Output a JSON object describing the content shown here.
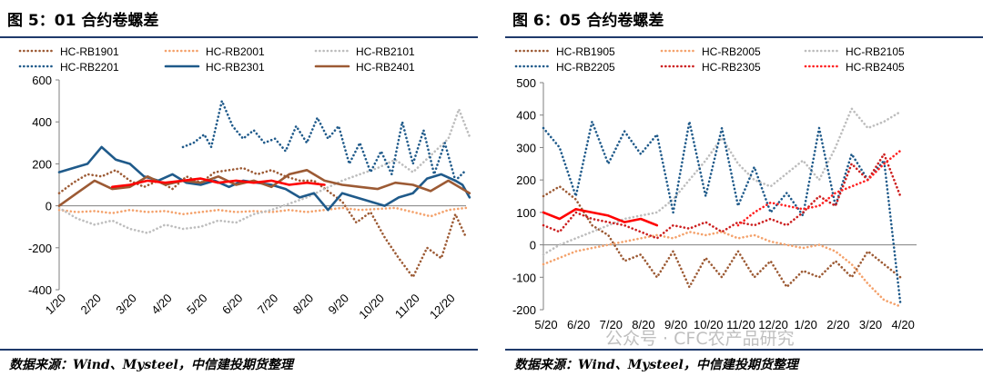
{
  "charts": [
    {
      "figure_title": "图 5：01 合约卷螺差",
      "source": "数据来源：Wind、Mysteel，中信建投期货整理",
      "chart_data": {
        "type": "line",
        "x_ticks": [
          "1/20",
          "2/20",
          "3/20",
          "4/20",
          "5/20",
          "6/20",
          "7/20",
          "8/20",
          "9/20",
          "10/20",
          "11/20",
          "12/20"
        ],
        "x_count": 12,
        "ylim": [
          -400,
          600
        ],
        "y_ticks": [
          600,
          400,
          200,
          0,
          -200,
          -400
        ],
        "legend_columns": 3,
        "series": [
          {
            "name": "HC-RB1901",
            "color": "#9c5a34",
            "style": "dot",
            "x": [
              0,
              0.4,
              0.8,
              1.2,
              1.6,
              2,
              2.4,
              2.8,
              3.2,
              3.6,
              4,
              4.4,
              4.8,
              5.2,
              5.6,
              6,
              6.4,
              6.8,
              7.2,
              7.6,
              8,
              8.4,
              8.8,
              9.2,
              9.6,
              10,
              10.4,
              10.8,
              11.2,
              11.5
            ],
            "y": [
              60,
              110,
              150,
              140,
              170,
              120,
              90,
              120,
              80,
              140,
              110,
              160,
              170,
              180,
              150,
              170,
              140,
              120,
              120,
              70,
              20,
              -80,
              -30,
              -150,
              -250,
              -340,
              -200,
              -250,
              -40,
              -150
            ]
          },
          {
            "name": "HC-RB2001",
            "color": "#f4a26c",
            "style": "dot",
            "x": [
              0,
              0.5,
              1,
              1.5,
              2,
              2.5,
              3,
              3.5,
              4,
              4.5,
              5,
              5.5,
              6,
              6.5,
              7,
              7.5,
              8,
              8.5,
              9,
              9.5,
              10,
              10.5,
              11,
              11.5
            ],
            "y": [
              -20,
              -30,
              -25,
              -35,
              -20,
              -30,
              -25,
              -40,
              -30,
              -20,
              -30,
              -25,
              -30,
              -20,
              -30,
              -20,
              -10,
              -20,
              -15,
              -10,
              -30,
              -50,
              -20,
              -10
            ]
          },
          {
            "name": "HC-RB2101",
            "color": "#bdbdbd",
            "style": "dot",
            "x": [
              0,
              0.5,
              1,
              1.5,
              2,
              2.5,
              3,
              3.5,
              4,
              4.5,
              5,
              5.5,
              6,
              6.5,
              7,
              7.5,
              8,
              8.5,
              9,
              9.5,
              10,
              10.5,
              11,
              11.3,
              11.6
            ],
            "y": [
              -10,
              -60,
              -90,
              -70,
              -110,
              -130,
              -90,
              -110,
              -100,
              -70,
              -80,
              -40,
              -20,
              10,
              40,
              80,
              120,
              150,
              180,
              220,
              160,
              240,
              320,
              460,
              330
            ]
          },
          {
            "name": "HC-RB2201",
            "color": "#1f5a8a",
            "style": "dot",
            "x": [
              3.5,
              3.8,
              4.1,
              4.3,
              4.6,
              4.9,
              5.2,
              5.5,
              5.8,
              6.1,
              6.4,
              6.7,
              7,
              7.3,
              7.6,
              7.9,
              8.2,
              8.5,
              8.8,
              9.1,
              9.4,
              9.7,
              10,
              10.3,
              10.6,
              10.9,
              11.2,
              11.5
            ],
            "y": [
              280,
              300,
              340,
              280,
              500,
              380,
              320,
              360,
              300,
              320,
              260,
              380,
              300,
              420,
              320,
              380,
              200,
              300,
              160,
              260,
              150,
              400,
              200,
              360,
              150,
              300,
              120,
              170
            ]
          },
          {
            "name": "HC-RB2301",
            "color": "#1f5a8a",
            "style": "solid",
            "x": [
              0,
              0.4,
              0.8,
              1.2,
              1.6,
              2,
              2.4,
              2.8,
              3.2,
              3.6,
              4,
              4.4,
              4.8,
              5.2,
              5.6,
              6,
              6.4,
              6.8,
              7.2,
              7.6,
              8,
              8.4,
              8.8,
              9.2,
              9.6,
              10,
              10.4,
              10.8,
              11.2,
              11.4,
              11.6
            ],
            "y": [
              160,
              180,
              200,
              280,
              220,
              200,
              140,
              120,
              150,
              110,
              100,
              120,
              90,
              120,
              110,
              100,
              80,
              40,
              60,
              -20,
              60,
              40,
              20,
              0,
              40,
              60,
              130,
              150,
              120,
              100,
              40
            ]
          },
          {
            "name": "HC-RB2401",
            "color": "#9c5a34",
            "style": "solid",
            "x": [
              0,
              0.5,
              1,
              1.5,
              2,
              2.5,
              3,
              3.5,
              4,
              4.5,
              5,
              5.5,
              6,
              6.5,
              7,
              7.5,
              8,
              8.5,
              9,
              9.5,
              10,
              10.5,
              11,
              11.3,
              11.6
            ],
            "y": [
              0,
              60,
              120,
              80,
              90,
              140,
              100,
              120,
              110,
              140,
              100,
              120,
              90,
              150,
              170,
              120,
              100,
              90,
              80,
              110,
              100,
              70,
              120,
              90,
              60
            ]
          },
          {
            "name": "",
            "color": "#ff0000",
            "style": "solid",
            "x": [
              1.5,
              2,
              2.5,
              3,
              3.5,
              4,
              4.5,
              5,
              5.5,
              6,
              6.5,
              7,
              7.5
            ],
            "y": [
              90,
              100,
              120,
              110,
              120,
              130,
              110,
              120,
              110,
              120,
              100,
              110,
              100
            ]
          }
        ]
      }
    },
    {
      "figure_title": "图 6：05 合约卷螺差",
      "source": "数据来源：Wind、Mysteel，中信建投期货整理",
      "chart_data": {
        "type": "line",
        "x_ticks": [
          "5/20",
          "6/20",
          "7/20",
          "8/20",
          "9/20",
          "10/20",
          "11/20",
          "12/20",
          "1/20",
          "2/20",
          "3/20",
          "4/20"
        ],
        "x_count": 12,
        "ylim": [
          -200,
          500
        ],
        "y_ticks": [
          500,
          400,
          300,
          200,
          100,
          0,
          -100,
          -200
        ],
        "legend_columns": 3,
        "series": [
          {
            "name": "HC-RB1905",
            "color": "#9c5a34",
            "style": "dot",
            "x": [
              0,
              0.5,
              1,
              1.5,
              2,
              2.5,
              3,
              3.5,
              4,
              4.5,
              5,
              5.5,
              6,
              6.5,
              7,
              7.5,
              8,
              8.5,
              9,
              9.5,
              10,
              10.5,
              11
            ],
            "y": [
              150,
              180,
              140,
              60,
              30,
              -50,
              -30,
              -100,
              -20,
              -130,
              -40,
              -100,
              -20,
              -100,
              -50,
              -130,
              -80,
              -100,
              -50,
              -100,
              -20,
              -60,
              -100
            ]
          },
          {
            "name": "HC-RB2005",
            "color": "#f4a26c",
            "style": "dot",
            "x": [
              0,
              0.5,
              1,
              1.5,
              2,
              2.5,
              3,
              3.5,
              4,
              4.5,
              5,
              5.5,
              6,
              6.5,
              7,
              7.5,
              8,
              8.5,
              9,
              9.5,
              10,
              10.5,
              11
            ],
            "y": [
              -60,
              -40,
              -20,
              -10,
              0,
              10,
              20,
              30,
              20,
              40,
              30,
              40,
              20,
              30,
              10,
              0,
              -10,
              0,
              -20,
              -60,
              -120,
              -170,
              -190
            ]
          },
          {
            "name": "HC-RB2105",
            "color": "#bdbdbd",
            "style": "dot",
            "x": [
              0,
              0.5,
              1,
              1.5,
              2,
              2.5,
              3,
              3.5,
              4,
              4.5,
              5,
              5.5,
              6,
              6.5,
              7,
              7.5,
              8,
              8.5,
              9,
              9.5,
              10,
              10.5,
              11
            ],
            "y": [
              -30,
              0,
              20,
              40,
              60,
              80,
              90,
              100,
              140,
              200,
              260,
              330,
              250,
              200,
              180,
              220,
              260,
              200,
              300,
              420,
              360,
              380,
              410
            ]
          },
          {
            "name": "HC-RB2205",
            "color": "#1f5a8a",
            "style": "dot",
            "x": [
              0,
              0.5,
              1,
              1.5,
              2,
              2.5,
              3,
              3.5,
              4,
              4.5,
              5,
              5.5,
              6,
              6.5,
              7,
              7.5,
              8,
              8.5,
              9,
              9.5,
              10,
              10.5,
              11
            ],
            "y": [
              360,
              300,
              150,
              380,
              250,
              350,
              280,
              340,
              100,
              380,
              150,
              360,
              120,
              240,
              100,
              160,
              90,
              360,
              120,
              280,
              200,
              260,
              -180
            ]
          },
          {
            "name": "HC-RB2305",
            "color": "#cc1f1f",
            "style": "dot",
            "x": [
              0,
              0.5,
              1,
              1.5,
              2,
              2.5,
              3,
              3.5,
              4,
              4.5,
              5,
              5.5,
              6,
              6.5,
              7,
              7.5,
              8,
              8.5,
              9,
              9.5,
              10,
              10.5,
              11
            ],
            "y": [
              60,
              40,
              100,
              80,
              70,
              60,
              40,
              20,
              60,
              50,
              70,
              40,
              70,
              60,
              80,
              60,
              100,
              150,
              120,
              250,
              200,
              280,
              150
            ]
          },
          {
            "name": "HC-RB2405",
            "color": "#ff2020",
            "style": "dot",
            "x": [
              6,
              6.5,
              7,
              7.5,
              8,
              8.5,
              9,
              9.5,
              10,
              10.5,
              11
            ],
            "y": [
              60,
              100,
              130,
              120,
              110,
              120,
              160,
              180,
              200,
              250,
              290
            ]
          },
          {
            "name": "",
            "color": "#ff0000",
            "style": "solid",
            "x": [
              0,
              0.5,
              1,
              1.5,
              2,
              2.5,
              3,
              3.5
            ],
            "y": [
              100,
              80,
              110,
              100,
              90,
              70,
              80,
              60
            ]
          }
        ]
      }
    }
  ],
  "watermark": "公众号 · CFC农产品研究"
}
